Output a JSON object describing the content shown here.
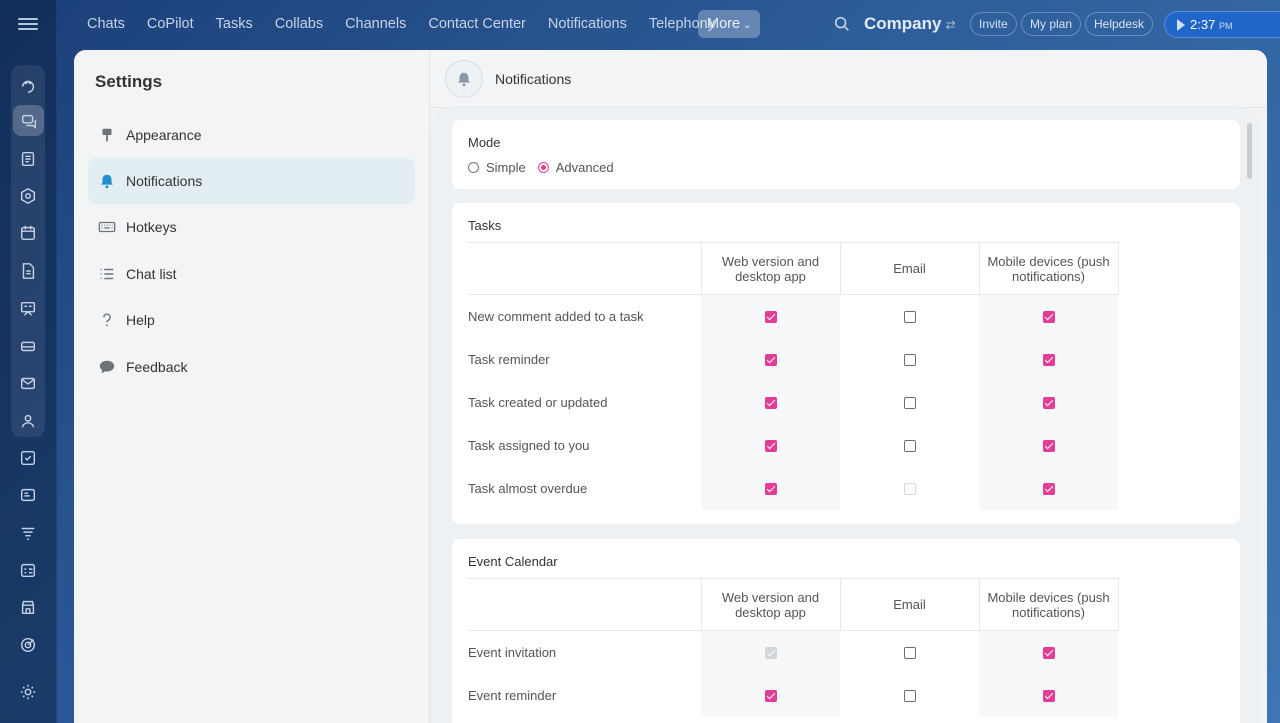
{
  "topnav": {
    "items": [
      "Chats",
      "CoPilot",
      "Tasks",
      "Collabs",
      "Channels",
      "Contact Center",
      "Notifications",
      "Telephony"
    ],
    "more_label": "More",
    "company": "Company",
    "invite": "Invite",
    "my_plan": "My plan",
    "helpdesk": "Helpdesk",
    "time": "2:37",
    "ampm": "PM"
  },
  "rail": {
    "icons": [
      "copilot-icon",
      "chat-icon",
      "feed-icon",
      "collab-icon",
      "calendar-icon",
      "docs-icon",
      "boards-icon",
      "drive-icon",
      "mail-icon",
      "groups-icon",
      "tasks-icon",
      "crm-icon",
      "sites-icon",
      "booking-icon",
      "store-icon",
      "goals-icon",
      "settings-icon"
    ]
  },
  "settings": {
    "title": "Settings",
    "items": [
      {
        "label": "Appearance",
        "icon": "brush-icon"
      },
      {
        "label": "Notifications",
        "icon": "bell-icon"
      },
      {
        "label": "Hotkeys",
        "icon": "keyboard-icon"
      },
      {
        "label": "Chat list",
        "icon": "list-icon"
      },
      {
        "label": "Help",
        "icon": "question-icon"
      },
      {
        "label": "Feedback",
        "icon": "speech-bubble-icon"
      }
    ],
    "active": "Notifications"
  },
  "notifications": {
    "header_title": "Notifications",
    "mode": {
      "title": "Mode",
      "options": [
        "Simple",
        "Advanced"
      ],
      "selected": "Advanced"
    },
    "columns": [
      "Web version and desktop app",
      "Email",
      "Mobile devices (push notifications)"
    ],
    "sections": [
      {
        "title": "Tasks",
        "rows": [
          {
            "label": "New comment added to a task",
            "web": "on",
            "email": "off",
            "mobile": "on"
          },
          {
            "label": "Task reminder",
            "web": "on",
            "email": "off",
            "mobile": "on"
          },
          {
            "label": "Task created or updated",
            "web": "on",
            "email": "off",
            "mobile": "on"
          },
          {
            "label": "Task assigned to you",
            "web": "on",
            "email": "off",
            "mobile": "on"
          },
          {
            "label": "Task almost overdue",
            "web": "on",
            "email": "disabled",
            "mobile": "on"
          }
        ]
      },
      {
        "title": "Event Calendar",
        "rows": [
          {
            "label": "Event invitation",
            "web": "disabled-on",
            "email": "off",
            "mobile": "on"
          },
          {
            "label": "Event reminder",
            "web": "on",
            "email": "off",
            "mobile": "on"
          }
        ]
      }
    ]
  },
  "colors": {
    "accent": "#e43d96",
    "active_item_bg": "#e3eef3",
    "clock_bg": "#1f66c8"
  }
}
